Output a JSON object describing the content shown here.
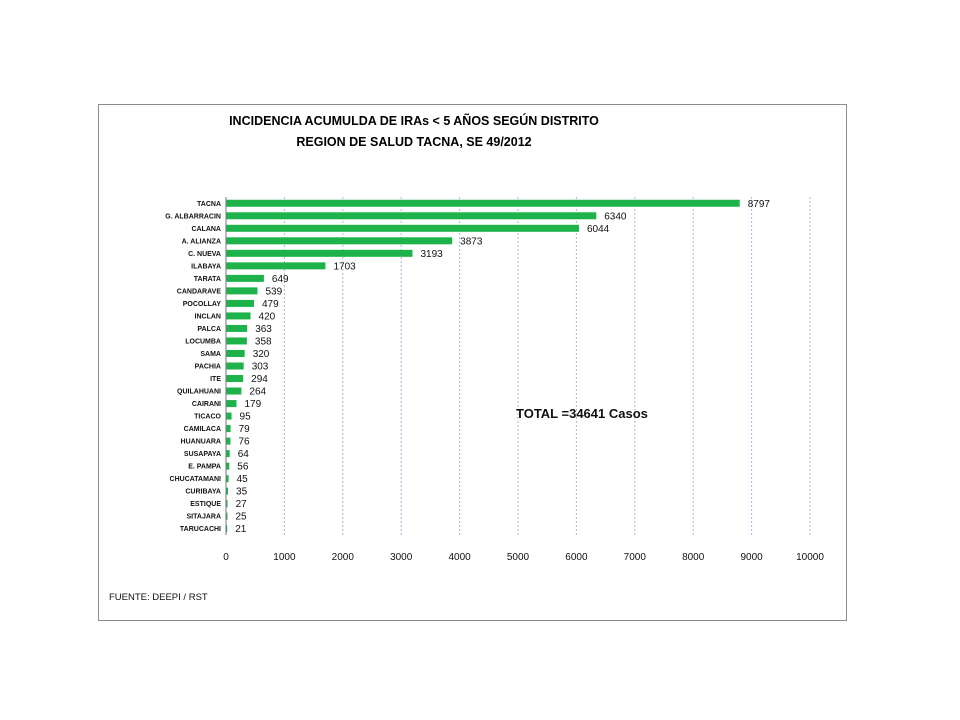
{
  "chart_data": {
    "type": "bar",
    "orientation": "horizontal",
    "title": "INCIDENCIA ACUMULDA DE IRAs < 5 AÑOS SEGÚN DISTRITO",
    "subtitle": "REGION DE SALUD TACNA, SE 49/2012",
    "categories": [
      "TACNA",
      "G. ALBARRACIN",
      "CALANA",
      "A. ALIANZA",
      "C. NUEVA",
      "ILABAYA",
      "TARATA",
      "CANDARAVE",
      "POCOLLAY",
      "INCLAN",
      "PALCA",
      "LOCUMBA",
      "SAMA",
      "PACHIA",
      "ITE",
      "QUILAHUANI",
      "CAIRANI",
      "TICACO",
      "CAMILACA",
      "HUANUARA",
      "SUSAPAYA",
      "E. PAMPA",
      "CHUCATAMANI",
      "CURIBAYA",
      "ESTIQUE",
      "SITAJARA",
      "TARUCACHI"
    ],
    "values": [
      8797,
      6340,
      6044,
      3873,
      3193,
      1703,
      649,
      539,
      479,
      420,
      363,
      358,
      320,
      303,
      294,
      264,
      179,
      95,
      79,
      76,
      64,
      56,
      45,
      35,
      27,
      25,
      21
    ],
    "xlim": [
      0,
      10000
    ],
    "xticks": [
      "0",
      "1000",
      "2000",
      "3000",
      "4000",
      "5000",
      "6000",
      "7000",
      "8000",
      "9000",
      "10000"
    ],
    "grid": "vertical dashed",
    "bar_color": "#1db34a",
    "annotation": "TOTAL =34641 Casos",
    "source": "FUENTE: DEEPI  / RST"
  }
}
